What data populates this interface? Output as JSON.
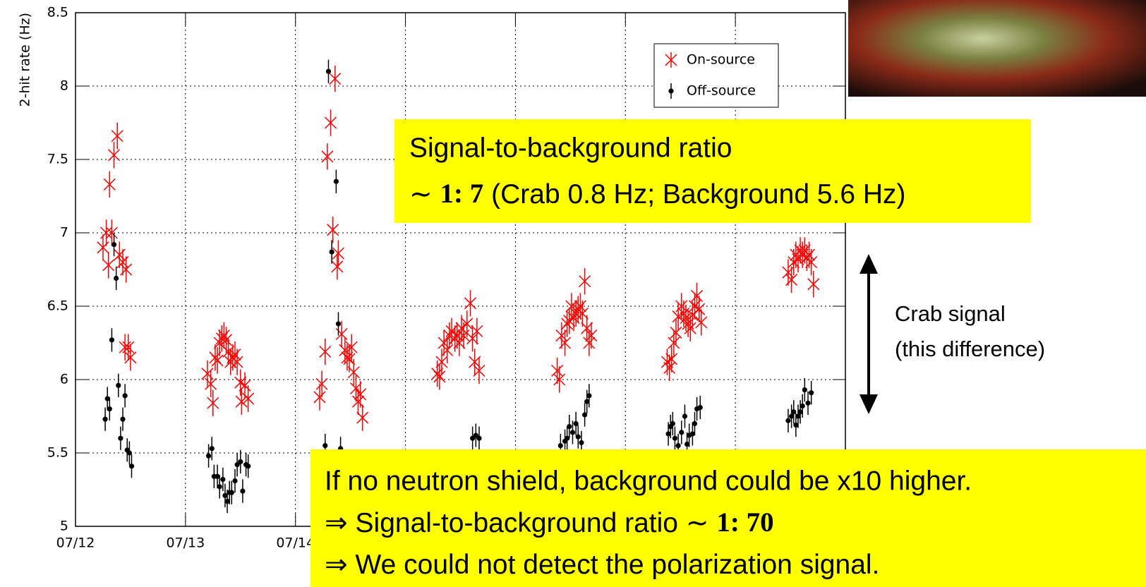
{
  "chart_data": {
    "type": "scatter",
    "y_label": "2-hit rate (Hz)",
    "xlim": [
      0,
      7
    ],
    "xticks": [
      {
        "value": 0,
        "label": "07/12"
      },
      {
        "value": 1,
        "label": "07/13"
      },
      {
        "value": 2,
        "label": "07/14"
      },
      {
        "value": 3,
        "label": null
      },
      {
        "value": 4,
        "label": null
      },
      {
        "value": 5,
        "label": null
      },
      {
        "value": 6,
        "label": null
      },
      {
        "value": 7,
        "label": null
      }
    ],
    "ylim": [
      5,
      8.5
    ],
    "yticks": [
      5,
      5.5,
      6,
      6.5,
      7,
      7.5,
      8,
      8.5
    ],
    "grid": true,
    "legend": "upper right",
    "series": [
      {
        "name": "On-source",
        "color": "#ff0000",
        "marker": "cross",
        "error": 0.09,
        "x": [
          0.25,
          0.28,
          0.3,
          0.31,
          0.33,
          0.35,
          0.38,
          0.4,
          0.43,
          0.46,
          0.45,
          0.48,
          0.5,
          1.2,
          1.23,
          1.25,
          1.27,
          1.29,
          1.31,
          1.33,
          1.35,
          1.37,
          1.39,
          1.41,
          1.43,
          1.45,
          1.47,
          1.5,
          1.51,
          1.54,
          1.57,
          2.22,
          2.24,
          2.27,
          2.29,
          2.32,
          2.34,
          2.36,
          2.38,
          2.39,
          2.42,
          2.45,
          2.47,
          2.49,
          2.51,
          2.53,
          2.55,
          2.57,
          2.59,
          2.61,
          3.29,
          3.31,
          3.33,
          3.35,
          3.38,
          3.4,
          3.42,
          3.45,
          3.47,
          3.49,
          3.51,
          3.53,
          3.56,
          3.59,
          3.61,
          3.63,
          3.65,
          3.67,
          4.38,
          4.4,
          4.42,
          4.45,
          4.47,
          4.49,
          4.51,
          4.53,
          4.55,
          4.57,
          4.59,
          4.61,
          4.63,
          4.65,
          4.67,
          4.69,
          5.38,
          5.4,
          5.42,
          5.44,
          5.46,
          5.48,
          5.51,
          5.53,
          5.55,
          5.57,
          5.59,
          5.61,
          5.63,
          5.65,
          5.67,
          5.69,
          6.48,
          6.51,
          6.53,
          6.55,
          6.57,
          6.59,
          6.61,
          6.63,
          6.65,
          6.67,
          6.69,
          6.71
        ],
        "values": [
          6.9,
          7.0,
          6.78,
          7.33,
          7.0,
          7.53,
          7.66,
          6.85,
          6.8,
          6.75,
          6.22,
          6.22,
          6.15,
          6.04,
          5.97,
          5.84,
          6.15,
          6.13,
          6.25,
          6.28,
          6.3,
          6.27,
          6.19,
          6.12,
          6.15,
          6.17,
          6.12,
          5.98,
          5.85,
          5.96,
          5.87,
          5.88,
          5.97,
          6.19,
          7.52,
          7.75,
          7.02,
          8.05,
          6.77,
          6.86,
          6.31,
          6.2,
          6.15,
          6.14,
          6.22,
          6.05,
          5.94,
          5.85,
          5.9,
          5.74,
          6.04,
          6.02,
          6.12,
          6.25,
          6.2,
          6.3,
          6.33,
          6.28,
          6.3,
          6.25,
          6.35,
          6.3,
          6.38,
          6.52,
          6.28,
          6.12,
          6.33,
          6.06,
          6.06,
          6.0,
          6.3,
          6.25,
          6.38,
          6.4,
          6.5,
          6.42,
          6.45,
          6.48,
          6.5,
          6.45,
          6.67,
          6.35,
          6.25,
          6.3,
          6.12,
          6.08,
          6.14,
          6.25,
          6.32,
          6.43,
          6.5,
          6.45,
          6.42,
          6.38,
          6.35,
          6.44,
          6.5,
          6.57,
          6.48,
          6.39,
          6.73,
          6.68,
          6.8,
          6.85,
          6.82,
          6.88,
          6.85,
          6.88,
          6.83,
          6.85,
          6.8,
          6.65
        ]
      },
      {
        "name": "Off-source",
        "color": "#000000",
        "marker": "dot",
        "error": 0.08,
        "x": [
          0.27,
          0.29,
          0.31,
          0.33,
          0.35,
          0.37,
          0.39,
          0.41,
          0.43,
          0.45,
          0.47,
          0.49,
          0.51,
          1.21,
          1.24,
          1.26,
          1.29,
          1.31,
          1.34,
          1.36,
          1.38,
          1.4,
          1.42,
          1.45,
          1.47,
          1.5,
          1.52,
          1.55,
          1.57,
          2.27,
          2.3,
          2.33,
          2.37,
          2.39,
          2.41,
          3.61,
          3.64,
          3.67,
          4.41,
          4.45,
          4.47,
          4.49,
          4.52,
          4.55,
          4.57,
          4.6,
          4.63,
          4.65,
          4.67,
          5.39,
          5.41,
          5.43,
          5.45,
          5.48,
          5.51,
          5.54,
          5.56,
          5.58,
          5.61,
          5.63,
          5.65,
          5.68,
          6.48,
          6.51,
          6.53,
          6.55,
          6.57,
          6.59,
          6.61,
          6.63,
          6.66,
          6.69
        ],
        "values": [
          5.73,
          5.87,
          5.8,
          6.27,
          6.92,
          6.69,
          5.96,
          5.6,
          5.73,
          5.89,
          5.52,
          5.5,
          5.41,
          5.48,
          5.53,
          5.34,
          5.34,
          5.27,
          5.32,
          5.21,
          5.17,
          5.23,
          5.23,
          5.31,
          5.42,
          5.44,
          5.24,
          5.42,
          5.41,
          5.55,
          8.1,
          6.87,
          7.35,
          6.38,
          5.53,
          5.6,
          5.62,
          5.6,
          5.55,
          5.58,
          5.6,
          5.68,
          5.64,
          5.7,
          5.61,
          5.57,
          5.76,
          5.85,
          5.89,
          5.63,
          5.68,
          5.7,
          5.6,
          5.55,
          5.64,
          5.75,
          5.56,
          5.62,
          5.63,
          5.7,
          5.8,
          5.81,
          5.72,
          5.75,
          5.78,
          5.69,
          5.75,
          5.78,
          5.82,
          5.93,
          5.84,
          5.91
        ]
      }
    ]
  },
  "annotations": {
    "ratio_box": {
      "line1": "Signal-to-background ratio",
      "approx": "∼",
      "ratio": "1: 7",
      "detail": "(Crab 0.8 Hz; Background 5.6 Hz)"
    },
    "crab_label": [
      "Crab signal",
      "(this difference)"
    ],
    "shield_box": {
      "line1": "If no neutron shield, background could be x10 higher.",
      "arrow": "⇒",
      "line2": "Signal-to-background ratio ∼",
      "ratio": "1: 70",
      "line3": "We could not detect the polarization signal."
    }
  }
}
